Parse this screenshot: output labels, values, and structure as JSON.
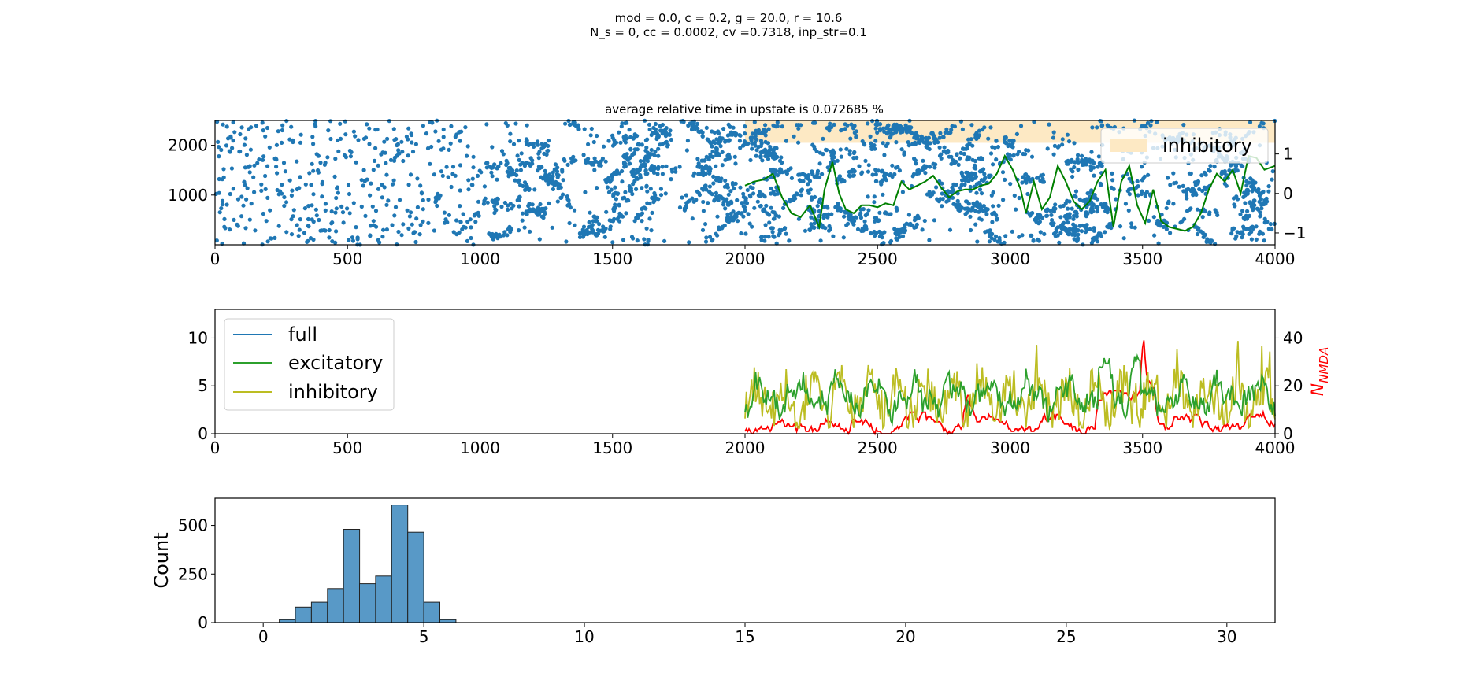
{
  "figure": {
    "suptitle_line1": "mod = 0.0, c = 0.2, g = 20.0, r = 10.6",
    "suptitle_line2": "N_s = 0, cc = 0.0002, cv =0.7318, inp_str=0.1"
  },
  "colors": {
    "raster": "#1f77b4",
    "green_line": "#008000",
    "full": "#1f77b4",
    "excitatory": "#2ca02c",
    "inhibitory": "#bcbd22",
    "nmda": "#ff0000",
    "upstate": "#fde9c4",
    "hist_fill": "#5899c7"
  },
  "chart_data": [
    {
      "type": "scatter",
      "title": "average relative time in upstate is 0.072685 %",
      "xlim": [
        0,
        4000
      ],
      "ylim": [
        0,
        2500
      ],
      "x_ticks": [
        0,
        500,
        1000,
        1500,
        2000,
        2500,
        3000,
        3500,
        4000
      ],
      "y_ticks": [
        1000,
        2000
      ],
      "y2lim": [
        -1.3,
        1.85
      ],
      "y2_ticks": [
        -1,
        0,
        1
      ],
      "legend": {
        "position": "upper-right",
        "entries": [
          "inhibitory"
        ]
      },
      "shaded_region": {
        "x": [
          2000,
          4000
        ],
        "y": [
          2050,
          2500
        ],
        "color": "#fde9c4"
      },
      "spike_density": {
        "description_points_per_segment": [
          {
            "x": [
              0,
              1000
            ],
            "density": "sparse"
          },
          {
            "x": [
              1000,
              4000
            ],
            "density": "dense, clustered"
          }
        ],
        "seed": 7
      },
      "green_series": {
        "x": [
          2000,
          2035,
          2070,
          2105,
          2140,
          2175,
          2210,
          2245,
          2280,
          2300,
          2330,
          2355,
          2380,
          2410,
          2440,
          2470,
          2500,
          2530,
          2560,
          2590,
          2620,
          2650,
          2680,
          2710,
          2740,
          2770,
          2800,
          2830,
          2860,
          2890,
          2920,
          2950,
          2980,
          3010,
          3040,
          3060,
          3090,
          3120,
          3150,
          3180,
          3210,
          3240,
          3270,
          3300,
          3330,
          3360,
          3390,
          3420,
          3450,
          3480,
          3510,
          3540,
          3570,
          3600,
          3630,
          3660,
          3690,
          3720,
          3750,
          3780,
          3810,
          3840,
          3870,
          3900,
          3930,
          3960,
          4000
        ],
        "y": [
          0.2,
          0.3,
          0.35,
          0.5,
          -0.1,
          -0.5,
          -0.6,
          -0.3,
          -0.85,
          0.1,
          0.8,
          0.0,
          -0.4,
          -0.5,
          -0.3,
          -0.3,
          -0.35,
          -0.25,
          -0.3,
          0.3,
          0.1,
          0.2,
          0.3,
          0.45,
          0.15,
          -0.1,
          0.05,
          0.1,
          0.1,
          0.2,
          0.25,
          0.5,
          0.95,
          0.6,
          0.1,
          -0.5,
          0.3,
          -0.4,
          -0.1,
          0.7,
          0.3,
          -0.2,
          -0.4,
          -0.2,
          0.3,
          0.6,
          -0.85,
          0.3,
          0.7,
          -0.3,
          -0.75,
          0.1,
          -0.7,
          -0.85,
          -0.9,
          -0.95,
          -0.85,
          -0.5,
          0.1,
          0.5,
          0.3,
          0.6,
          0.0,
          0.95,
          0.9,
          0.6,
          0.7
        ]
      }
    },
    {
      "type": "line",
      "xlim": [
        0,
        4000
      ],
      "ylim": [
        0,
        13
      ],
      "x_ticks": [
        0,
        500,
        1000,
        1500,
        2000,
        2500,
        3000,
        3500,
        4000
      ],
      "y_ticks": [
        0,
        5,
        10
      ],
      "y2lim": [
        0,
        52
      ],
      "y2_ticks": [
        0,
        20,
        40
      ],
      "y2label": "N_NMDA",
      "y2label_main": "N",
      "y2label_sub": "NMDA",
      "legend": {
        "position": "upper-left",
        "entries": [
          "full",
          "excitatory",
          "inhibitory"
        ]
      },
      "x_start": 2000,
      "x_end": 4000,
      "seed": 11
    },
    {
      "type": "bar",
      "ylabel": "Count",
      "xlim": [
        -1.5,
        31.5
      ],
      "ylim": [
        0,
        640
      ],
      "x_ticks": [
        0,
        5,
        10,
        15,
        20,
        25,
        30
      ],
      "y_ticks": [
        0,
        250,
        500
      ],
      "bin_edges": [
        0.5,
        1.0,
        1.5,
        2.0,
        2.5,
        3.0,
        3.5,
        4.0,
        4.5,
        5.0,
        5.5,
        6.0
      ],
      "values": [
        15,
        80,
        105,
        175,
        480,
        200,
        240,
        605,
        465,
        105,
        15
      ]
    }
  ]
}
